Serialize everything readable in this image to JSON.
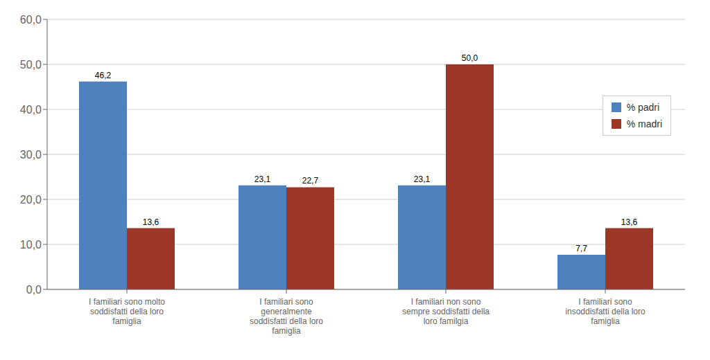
{
  "chart_data": {
    "type": "bar",
    "categories": [
      "I familiari sono molto\nsoddisfatti della loro\nfamiglia",
      "I familiari sono\ngeneralmente\nsoddisfatti della loro\nfamiglia",
      "I familiari non sono\nsempre soddisfatti della\nloro familgia",
      "I familiari sono\ninsoddisfatti della loro\nfamiglia"
    ],
    "series": [
      {
        "name": "% padri",
        "color": "#4F81BD",
        "values": [
          46.2,
          23.1,
          23.1,
          7.7
        ],
        "value_labels": [
          "46,2",
          "23,1",
          "23,1",
          "7,7"
        ]
      },
      {
        "name": "% madri",
        "color": "#9C3728",
        "values": [
          13.6,
          22.7,
          50.0,
          13.6
        ],
        "value_labels": [
          "13,6",
          "22,7",
          "50,0",
          "13,6"
        ]
      }
    ],
    "ylim": [
      0,
      60
    ],
    "yticks": [
      {
        "value": 0,
        "label": "0,0"
      },
      {
        "value": 10,
        "label": "10,0"
      },
      {
        "value": 20,
        "label": "20,0"
      },
      {
        "value": 30,
        "label": "30,0"
      },
      {
        "value": 40,
        "label": "40,0"
      },
      {
        "value": 50,
        "label": "50,0"
      },
      {
        "value": 60,
        "label": "60,0"
      }
    ],
    "grid": true,
    "legend": "upper right",
    "data_labels": true
  }
}
